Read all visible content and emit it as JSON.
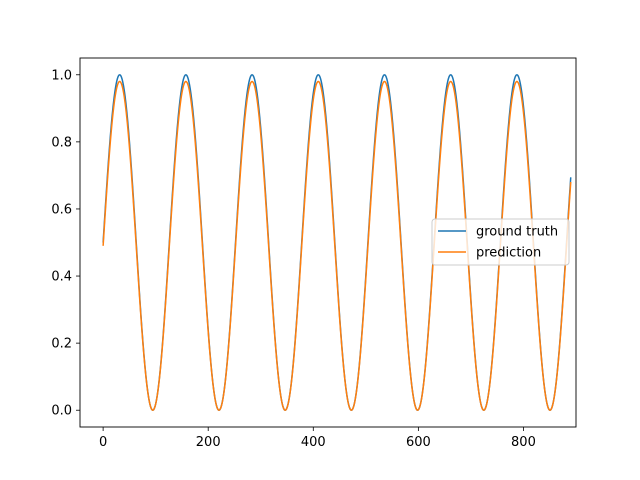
{
  "chart_data": {
    "type": "line",
    "title": "",
    "xlabel": "",
    "ylabel": "",
    "xlim": [
      -44,
      900
    ],
    "ylim": [
      -0.05,
      1.05
    ],
    "grid": false,
    "legend_position": "center-right",
    "x_ticks": [
      0,
      200,
      400,
      600,
      800
    ],
    "x_tick_labels": [
      "0",
      "200",
      "400",
      "600",
      "800"
    ],
    "y_ticks": [
      0.0,
      0.2,
      0.4,
      0.6,
      0.8,
      1.0
    ],
    "y_tick_labels": [
      "0.0",
      "0.2",
      "0.4",
      "0.6",
      "0.8",
      "1.0"
    ],
    "series_function": "y = 0.5 + 0.5*sin(2*pi*x/126); prediction: y = 0.49 + 0.49*sin(2*pi*x/126)",
    "x_range": [
      0,
      890
    ],
    "period": 126,
    "series": [
      {
        "name": "ground truth",
        "color": "#1f77b4",
        "offset": 0.5,
        "amplitude": 0.5
      },
      {
        "name": "prediction",
        "color": "#ff7f0e",
        "offset": 0.49,
        "amplitude": 0.49
      }
    ]
  }
}
